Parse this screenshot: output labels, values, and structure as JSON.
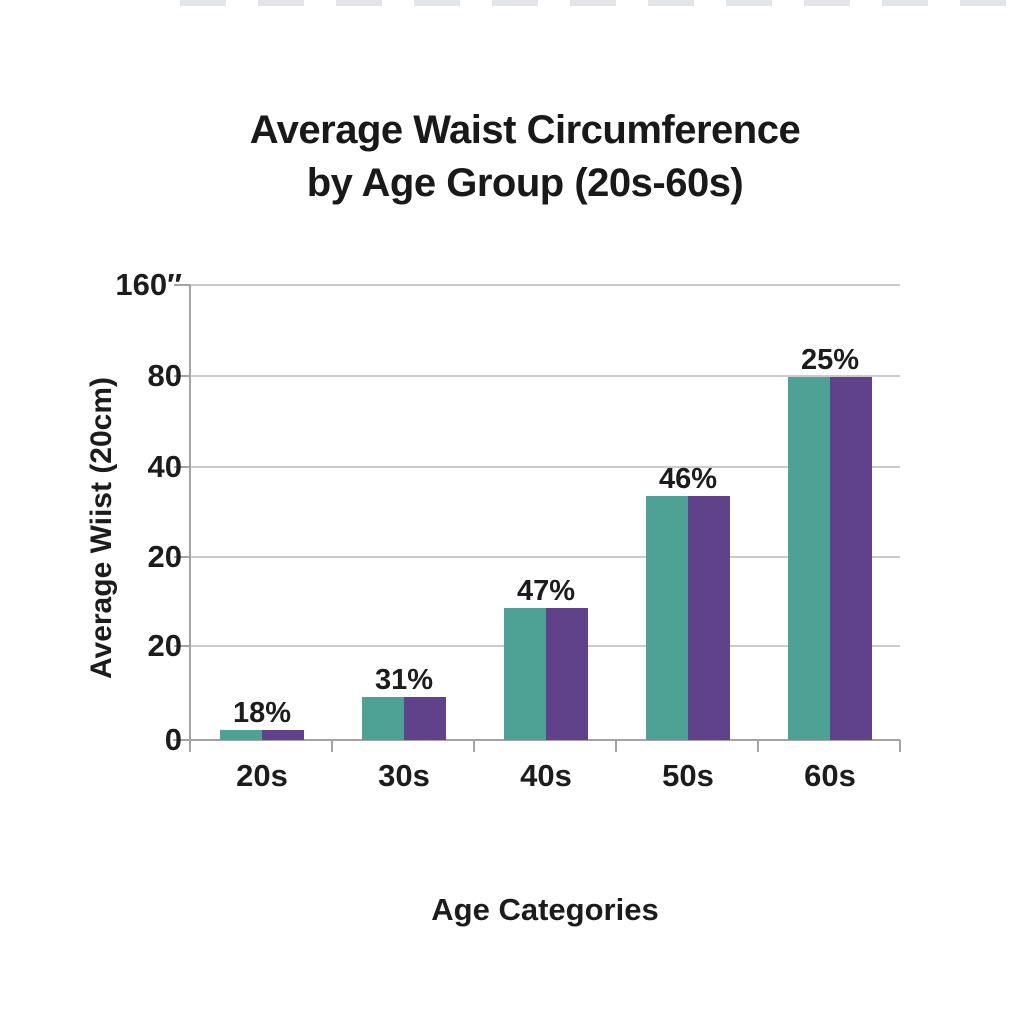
{
  "title": {
    "lines": [
      "Average Waist Circumference",
      "by Age Group (20s-60s)"
    ]
  },
  "chart_data": {
    "type": "bar",
    "title": "Average Waist Circumference by Age Group (20s-60s)",
    "xlabel": "Age Categories",
    "ylabel": "Average Wiist (20cm)",
    "categories": [
      "20s",
      "30s",
      "40s",
      "50s",
      "60s"
    ],
    "data_labels": [
      "18%",
      "31%",
      "47%",
      "46%",
      "25%"
    ],
    "y_tick_labels_top_to_bottom": [
      "160″",
      "80",
      "40",
      "20",
      "20",
      "0"
    ],
    "x_tick_labels": [
      "20s",
      "30s",
      "40s",
      "50s",
      "60s"
    ],
    "series": [
      {
        "name": "teal",
        "color": "#4DA195",
        "height_frac": [
          0.022,
          0.095,
          0.29,
          0.536,
          0.798
        ]
      },
      {
        "name": "purple",
        "color": "#5F4289",
        "height_frac": [
          0.022,
          0.095,
          0.29,
          0.536,
          0.798
        ]
      }
    ],
    "bars_per_category": 2,
    "legend": "none",
    "grid": "horizontal",
    "axis_note": "non-linear hand-drawn style axis; tick spacing equal for all labels"
  },
  "colors": {
    "background": "#ffffff",
    "bar_teal": "#4DA195",
    "bar_purple": "#5F4289",
    "gridline": "#cbcbcb",
    "axis": "#a3a3a3",
    "text": "#1c1c1c"
  }
}
